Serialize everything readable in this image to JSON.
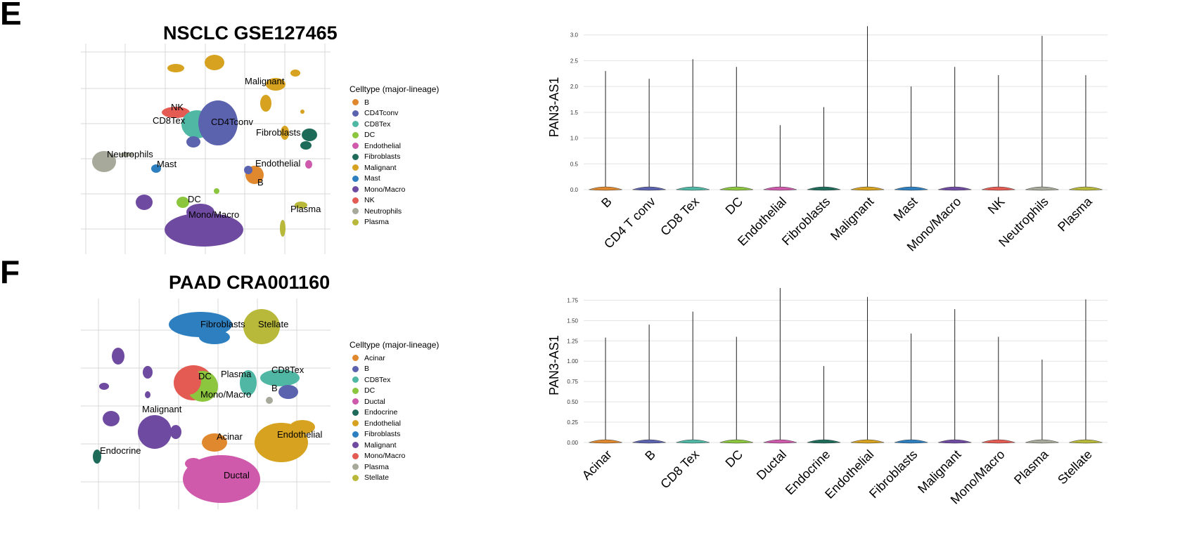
{
  "panels": [
    {
      "letter": "E",
      "umap": {
        "title": "NSCLC GSE127465",
        "legend_title": "Celltype (major-lineage)",
        "legend": [
          {
            "label": "B",
            "color": "#e0882e"
          },
          {
            "label": "CD4Tconv",
            "color": "#5b62ae"
          },
          {
            "label": "CD8Tex",
            "color": "#4fb7a4"
          },
          {
            "label": "DC",
            "color": "#8cc63f"
          },
          {
            "label": "Endothelial",
            "color": "#cf5aab"
          },
          {
            "label": "Fibroblasts",
            "color": "#1e6b5a"
          },
          {
            "label": "Malignant",
            "color": "#d6a21f"
          },
          {
            "label": "Mast",
            "color": "#2e7fbf"
          },
          {
            "label": "Mono/Macro",
            "color": "#6f4aa1"
          },
          {
            "label": "NK",
            "color": "#e35b52"
          },
          {
            "label": "Neutrophils",
            "color": "#a7a99a"
          },
          {
            "label": "Plasma",
            "color": "#b8b83a"
          }
        ],
        "cluster_labels": [
          "Malignant",
          "NK",
          "CD8Tex",
          "CD4Tconv",
          "Fibroblasts",
          "Neutrophils",
          "Mast",
          "Endothelial",
          "B",
          "DC",
          "Mono/Macro",
          "Plasma"
        ]
      },
      "violin": {
        "type": "violin",
        "ylabel": "PAN3-AS1",
        "ylim": [
          0,
          3.2
        ],
        "yticks": [
          0.0,
          0.5,
          1.0,
          1.5,
          2.0,
          2.5,
          3.0
        ],
        "ytick_labels": [
          "0.0",
          "0.5",
          "1.0",
          "1.5",
          "2.0",
          "2.5",
          "3.0"
        ],
        "categories": [
          "B",
          "CD4 T conv",
          "CD8 Tex",
          "DC",
          "Endothelial",
          "Fibroblasts",
          "Malignant",
          "Mast",
          "Mono/Macro",
          "NK",
          "Neutrophils",
          "Plasma"
        ],
        "max_values": [
          2.3,
          2.15,
          2.53,
          2.38,
          1.25,
          1.6,
          3.17,
          2.0,
          2.38,
          2.22,
          2.98,
          2.22
        ],
        "colors": [
          "#e0882e",
          "#5b62ae",
          "#4fb7a4",
          "#8cc63f",
          "#cf5aab",
          "#1e6b5a",
          "#d6a21f",
          "#2e7fbf",
          "#6f4aa1",
          "#e35b52",
          "#a7a99a",
          "#b8b83a"
        ]
      }
    },
    {
      "letter": "F",
      "umap": {
        "title": "PAAD CRA001160",
        "legend_title": "Celltype (major-lineage)",
        "legend": [
          {
            "label": "Acinar",
            "color": "#e0882e"
          },
          {
            "label": "B",
            "color": "#5b62ae"
          },
          {
            "label": "CD8Tex",
            "color": "#4fb7a4"
          },
          {
            "label": "DC",
            "color": "#8cc63f"
          },
          {
            "label": "Ductal",
            "color": "#cf5aab"
          },
          {
            "label": "Endocrine",
            "color": "#1e6b5a"
          },
          {
            "label": "Endothelial",
            "color": "#d6a21f"
          },
          {
            "label": "Fibroblasts",
            "color": "#2e7fbf"
          },
          {
            "label": "Malignant",
            "color": "#6f4aa1"
          },
          {
            "label": "Mono/Macro",
            "color": "#e35b52"
          },
          {
            "label": "Plasma",
            "color": "#a7a99a"
          },
          {
            "label": "Stellate",
            "color": "#b8b83a"
          }
        ],
        "cluster_labels": [
          "Fibroblasts",
          "Stellate",
          "CD8Tex",
          "DC",
          "Plasma",
          "B",
          "Mono/Macro",
          "Malignant",
          "Endothelial",
          "Acinar",
          "Endocrine",
          "Ductal"
        ]
      },
      "violin": {
        "type": "violin",
        "ylabel": "PAN3-AS1",
        "ylim": [
          0,
          1.9
        ],
        "yticks": [
          0.0,
          0.25,
          0.5,
          0.75,
          1.0,
          1.25,
          1.5,
          1.75
        ],
        "ytick_labels": [
          "0.00",
          "0.25",
          "0.50",
          "0.75",
          "1.00",
          "1.25",
          "1.50",
          "1.75"
        ],
        "categories": [
          "Acinar",
          "B",
          "CD8 Tex",
          "DC",
          "Ductal",
          "Endocrine",
          "Endothelial",
          "Fibroblasts",
          "Malignant",
          "Mono/Macro",
          "Plasma",
          "Stellate"
        ],
        "max_values": [
          1.29,
          1.45,
          1.61,
          1.3,
          1.9,
          0.94,
          1.79,
          1.34,
          1.64,
          1.3,
          1.02,
          1.76
        ],
        "colors": [
          "#e0882e",
          "#5b62ae",
          "#4fb7a4",
          "#8cc63f",
          "#cf5aab",
          "#1e6b5a",
          "#d6a21f",
          "#2e7fbf",
          "#6f4aa1",
          "#e35b52",
          "#a7a99a",
          "#b8b83a"
        ]
      }
    }
  ],
  "chart_data": [
    {
      "type": "violin",
      "title": "",
      "ylabel": "PAN3-AS1",
      "xlabel": "",
      "categories": [
        "B",
        "CD4 T conv",
        "CD8 Tex",
        "DC",
        "Endothelial",
        "Fibroblasts",
        "Malignant",
        "Mast",
        "Mono/Macro",
        "NK",
        "Neutrophils",
        "Plasma"
      ],
      "values": [
        2.3,
        2.15,
        2.53,
        2.38,
        1.25,
        1.6,
        3.17,
        2.0,
        2.38,
        2.22,
        2.98,
        2.22
      ],
      "ylim": [
        0,
        3.2
      ]
    },
    {
      "type": "violin",
      "title": "",
      "ylabel": "PAN3-AS1",
      "xlabel": "",
      "categories": [
        "Acinar",
        "B",
        "CD8 Tex",
        "DC",
        "Ductal",
        "Endocrine",
        "Endothelial",
        "Fibroblasts",
        "Malignant",
        "Mono/Macro",
        "Plasma",
        "Stellate"
      ],
      "values": [
        1.29,
        1.45,
        1.61,
        1.3,
        1.9,
        0.94,
        1.79,
        1.34,
        1.64,
        1.3,
        1.02,
        1.76
      ],
      "ylim": [
        0,
        1.9
      ]
    }
  ]
}
